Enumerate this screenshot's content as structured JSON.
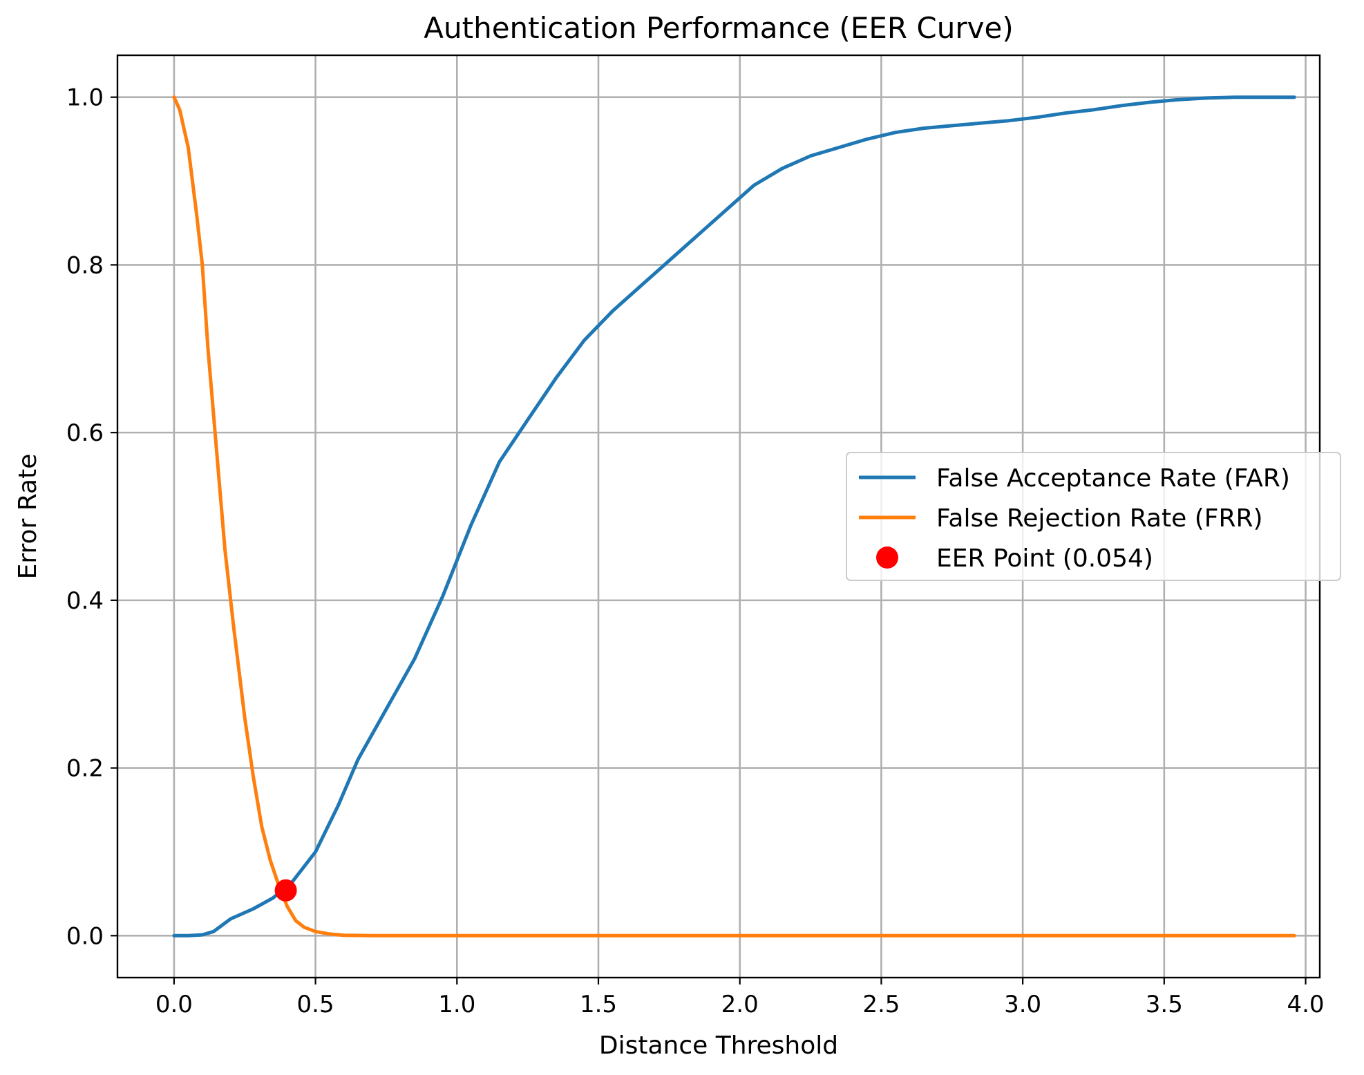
{
  "chart_data": {
    "type": "line",
    "title": "Authentication Performance (EER Curve)",
    "xlabel": "Distance Threshold",
    "ylabel": "Error Rate",
    "xlim": [
      -0.2,
      4.05
    ],
    "ylim": [
      -0.05,
      1.05
    ],
    "xticks": [
      0.0,
      0.5,
      1.0,
      1.5,
      2.0,
      2.5,
      3.0,
      3.5,
      4.0
    ],
    "xtick_labels": [
      "0.0",
      "0.5",
      "1.0",
      "1.5",
      "2.0",
      "2.5",
      "3.0",
      "3.5",
      "4.0"
    ],
    "yticks": [
      0.0,
      0.2,
      0.4,
      0.6,
      0.8,
      1.0
    ],
    "ytick_labels": [
      "0.0",
      "0.2",
      "0.4",
      "0.6",
      "0.8",
      "1.0"
    ],
    "grid": true,
    "legend_position": "center-right",
    "series": [
      {
        "name": "False Acceptance Rate (FAR)",
        "color": "#1f77b4",
        "style": "line",
        "x": [
          0.0,
          0.05,
          0.1,
          0.14,
          0.2,
          0.28,
          0.35,
          0.42,
          0.5,
          0.58,
          0.65,
          0.75,
          0.85,
          0.95,
          1.05,
          1.15,
          1.25,
          1.35,
          1.45,
          1.55,
          1.65,
          1.75,
          1.85,
          1.95,
          2.05,
          2.15,
          2.25,
          2.35,
          2.45,
          2.55,
          2.65,
          2.75,
          2.85,
          2.95,
          3.05,
          3.15,
          3.25,
          3.35,
          3.45,
          3.55,
          3.65,
          3.75,
          3.85,
          3.96
        ],
        "y": [
          0.0,
          0.0,
          0.001,
          0.005,
          0.02,
          0.032,
          0.045,
          0.065,
          0.1,
          0.155,
          0.21,
          0.27,
          0.33,
          0.405,
          0.49,
          0.565,
          0.615,
          0.665,
          0.71,
          0.745,
          0.775,
          0.805,
          0.835,
          0.865,
          0.895,
          0.915,
          0.93,
          0.94,
          0.95,
          0.958,
          0.963,
          0.966,
          0.969,
          0.972,
          0.976,
          0.981,
          0.985,
          0.99,
          0.994,
          0.997,
          0.999,
          1.0,
          1.0,
          1.0
        ]
      },
      {
        "name": "False Rejection Rate (FRR)",
        "color": "#ff7f0e",
        "style": "line",
        "x": [
          0.0,
          0.02,
          0.05,
          0.08,
          0.1,
          0.12,
          0.15,
          0.18,
          0.21,
          0.25,
          0.28,
          0.31,
          0.34,
          0.37,
          0.4,
          0.43,
          0.46,
          0.5,
          0.55,
          0.6,
          0.7,
          0.8,
          1.0,
          1.5,
          2.0,
          2.5,
          3.0,
          3.5,
          3.96
        ],
        "y": [
          1.0,
          0.985,
          0.94,
          0.86,
          0.8,
          0.7,
          0.58,
          0.46,
          0.37,
          0.26,
          0.19,
          0.13,
          0.09,
          0.06,
          0.035,
          0.018,
          0.01,
          0.005,
          0.002,
          0.0005,
          0.0,
          0.0,
          0.0,
          0.0,
          0.0,
          0.0,
          0.0,
          0.0,
          0.0
        ]
      },
      {
        "name": "EER Point (0.054)",
        "color": "#ff0000",
        "style": "point",
        "x": [
          0.395
        ],
        "y": [
          0.054
        ]
      }
    ]
  }
}
